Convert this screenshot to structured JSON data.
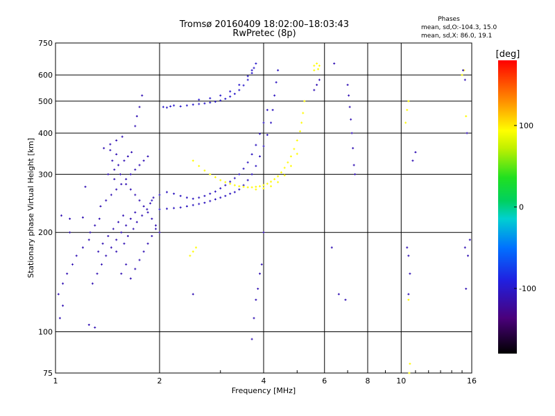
{
  "chart_data": {
    "type": "scatter",
    "title": "Tromsø 20160409 18:02:00–18:03:43",
    "subtitle": "RwPretec (8p)",
    "xlabel": "Frequency [MHz]",
    "ylabel": "Stationary phase Virtual Height [km]",
    "x_scale": "log",
    "y_scale": "log",
    "xlim": [
      1,
      16
    ],
    "ylim": [
      75,
      750
    ],
    "x_ticks": [
      1,
      2,
      4,
      6,
      8,
      10,
      16
    ],
    "y_ticks": [
      75,
      100,
      200,
      300,
      400,
      500,
      600,
      750
    ],
    "grid": true,
    "phase_box": {
      "title": "Phases",
      "line1": "mean, sd,O:-104.3, 15.0",
      "line2": "mean, sd,X:  86.0, 19.1"
    },
    "colorbar": {
      "label": "[deg]",
      "range": [
        -180,
        180
      ],
      "ticks": [
        -100,
        0,
        100
      ]
    },
    "series": [
      {
        "group": "scattered-low",
        "phase": -110,
        "points": [
          [
            1.02,
            130
          ],
          [
            1.05,
            140
          ],
          [
            1.08,
            150
          ],
          [
            1.12,
            160
          ],
          [
            1.15,
            170
          ],
          [
            1.2,
            180
          ],
          [
            1.25,
            190
          ],
          [
            1.1,
            200
          ],
          [
            1.04,
            225
          ],
          [
            1.1,
            220
          ],
          [
            1.2,
            222
          ],
          [
            1.05,
            120
          ],
          [
            1.03,
            110
          ],
          [
            1.25,
            105
          ],
          [
            1.28,
            140
          ],
          [
            1.32,
            150
          ],
          [
            1.36,
            160
          ],
          [
            1.4,
            170
          ],
          [
            1.45,
            180
          ],
          [
            1.5,
            190
          ],
          [
            1.55,
            200
          ],
          [
            1.6,
            210
          ],
          [
            1.65,
            220
          ],
          [
            1.7,
            230
          ],
          [
            1.35,
            240
          ],
          [
            1.4,
            250
          ],
          [
            1.45,
            260
          ],
          [
            1.5,
            270
          ],
          [
            1.55,
            280
          ],
          [
            1.6,
            290
          ],
          [
            1.42,
            300
          ],
          [
            1.48,
            310
          ],
          [
            1.52,
            320
          ],
          [
            1.58,
            330
          ],
          [
            1.62,
            340
          ],
          [
            1.66,
            350
          ],
          [
            1.38,
            360
          ],
          [
            1.44,
            370
          ],
          [
            1.5,
            380
          ],
          [
            1.56,
            390
          ],
          [
            1.65,
            145
          ],
          [
            1.7,
            155
          ],
          [
            1.75,
            165
          ],
          [
            1.8,
            175
          ],
          [
            1.85,
            185
          ],
          [
            1.9,
            195
          ],
          [
            1.95,
            205
          ],
          [
            1.55,
            150
          ],
          [
            1.6,
            160
          ],
          [
            1.5,
            175
          ],
          [
            1.58,
            185
          ],
          [
            1.62,
            195
          ],
          [
            1.68,
            205
          ],
          [
            1.72,
            215
          ],
          [
            1.78,
            225
          ],
          [
            1.84,
            235
          ],
          [
            1.88,
            245
          ],
          [
            1.92,
            255
          ],
          [
            1.65,
            300
          ],
          [
            1.7,
            310
          ],
          [
            1.75,
            320
          ],
          [
            1.8,
            330
          ],
          [
            1.85,
            340
          ],
          [
            1.7,
            420
          ],
          [
            1.72,
            450
          ],
          [
            1.75,
            480
          ],
          [
            1.78,
            520
          ],
          [
            1.6,
            280
          ],
          [
            1.65,
            270
          ],
          [
            1.7,
            260
          ],
          [
            1.75,
            250
          ],
          [
            1.8,
            240
          ],
          [
            1.85,
            230
          ],
          [
            1.9,
            220
          ],
          [
            1.95,
            210
          ],
          [
            2.0,
            200
          ],
          [
            1.33,
            175
          ],
          [
            1.37,
            185
          ],
          [
            1.42,
            195
          ],
          [
            1.47,
            205
          ],
          [
            1.52,
            215
          ],
          [
            1.57,
            225
          ],
          [
            1.48,
            290
          ],
          [
            1.54,
            300
          ],
          [
            1.46,
            330
          ],
          [
            1.5,
            345
          ],
          [
            1.44,
            355
          ],
          [
            1.26,
            200
          ],
          [
            1.3,
            210
          ],
          [
            1.34,
            220
          ],
          [
            1.22,
            275
          ]
        ]
      },
      {
        "group": "o-trace-lower",
        "phase": -105,
        "points": [
          [
            2.0,
            235
          ],
          [
            2.1,
            236
          ],
          [
            2.2,
            237
          ],
          [
            2.3,
            238
          ],
          [
            2.4,
            240
          ],
          [
            2.5,
            242
          ],
          [
            2.6,
            244
          ],
          [
            2.7,
            246
          ],
          [
            2.8,
            249
          ],
          [
            2.9,
            252
          ],
          [
            3.0,
            255
          ],
          [
            3.1,
            258
          ],
          [
            3.2,
            262
          ],
          [
            3.3,
            265
          ],
          [
            3.4,
            270
          ],
          [
            3.5,
            278
          ],
          [
            3.6,
            288
          ],
          [
            3.7,
            300
          ],
          [
            3.8,
            318
          ],
          [
            3.9,
            340
          ],
          [
            4.0,
            365
          ],
          [
            4.1,
            395
          ],
          [
            4.2,
            430
          ],
          [
            4.25,
            470
          ],
          [
            4.3,
            520
          ],
          [
            4.35,
            570
          ],
          [
            4.4,
            620
          ],
          [
            1.9,
            250
          ],
          [
            2.0,
            260
          ],
          [
            2.1,
            265
          ],
          [
            2.2,
            262
          ],
          [
            2.3,
            258
          ],
          [
            2.4,
            255
          ],
          [
            2.5,
            253
          ],
          [
            2.6,
            255
          ],
          [
            2.7,
            258
          ],
          [
            2.8,
            262
          ],
          [
            2.9,
            266
          ],
          [
            3.0,
            272
          ],
          [
            3.1,
            278
          ],
          [
            3.2,
            285
          ],
          [
            3.3,
            292
          ],
          [
            3.4,
            300
          ],
          [
            3.5,
            312
          ],
          [
            3.6,
            326
          ],
          [
            3.7,
            345
          ],
          [
            3.8,
            368
          ],
          [
            3.9,
            398
          ],
          [
            4.0,
            430
          ],
          [
            4.1,
            470
          ]
        ]
      },
      {
        "group": "o-trace-upper",
        "phase": -100,
        "points": [
          [
            2.05,
            480
          ],
          [
            2.1,
            478
          ],
          [
            2.15,
            482
          ],
          [
            2.2,
            485
          ],
          [
            2.3,
            482
          ],
          [
            2.4,
            485
          ],
          [
            2.5,
            488
          ],
          [
            2.6,
            490
          ],
          [
            2.7,
            492
          ],
          [
            2.8,
            495
          ],
          [
            2.9,
            498
          ],
          [
            3.0,
            502
          ],
          [
            3.1,
            508
          ],
          [
            3.2,
            516
          ],
          [
            3.3,
            526
          ],
          [
            3.4,
            540
          ],
          [
            3.5,
            558
          ],
          [
            3.6,
            580
          ],
          [
            3.7,
            608
          ],
          [
            3.75,
            630
          ],
          [
            3.8,
            650
          ],
          [
            2.6,
            505
          ],
          [
            2.8,
            510
          ],
          [
            3.0,
            520
          ],
          [
            3.2,
            535
          ],
          [
            3.4,
            560
          ],
          [
            3.6,
            595
          ],
          [
            3.7,
            620
          ]
        ]
      },
      {
        "group": "x-trace",
        "phase": 95,
        "points": [
          [
            2.5,
            330
          ],
          [
            2.6,
            318
          ],
          [
            2.7,
            308
          ],
          [
            2.8,
            300
          ],
          [
            2.9,
            294
          ],
          [
            3.0,
            288
          ],
          [
            3.1,
            284
          ],
          [
            3.2,
            281
          ],
          [
            3.3,
            278
          ],
          [
            3.4,
            276
          ],
          [
            3.5,
            275
          ],
          [
            3.6,
            274
          ],
          [
            3.7,
            274
          ],
          [
            3.8,
            275
          ],
          [
            3.9,
            276
          ],
          [
            4.0,
            278
          ],
          [
            4.1,
            281
          ],
          [
            4.2,
            285
          ],
          [
            4.3,
            290
          ],
          [
            4.4,
            296
          ],
          [
            4.5,
            304
          ],
          [
            4.6,
            314
          ],
          [
            4.7,
            326
          ],
          [
            4.8,
            340
          ],
          [
            4.9,
            358
          ],
          [
            5.0,
            380
          ],
          [
            5.1,
            405
          ],
          [
            5.15,
            430
          ],
          [
            5.2,
            460
          ],
          [
            5.25,
            500
          ],
          [
            3.8,
            270
          ],
          [
            4.0,
            272
          ],
          [
            4.2,
            276
          ],
          [
            4.4,
            284
          ],
          [
            4.6,
            298
          ],
          [
            4.8,
            318
          ],
          [
            5.0,
            346
          ],
          [
            2.45,
            170
          ],
          [
            2.5,
            175
          ],
          [
            2.55,
            180
          ],
          [
            5.6,
            640
          ],
          [
            5.7,
            650
          ],
          [
            5.8,
            640
          ],
          [
            5.6,
            620
          ],
          [
            5.75,
            625
          ],
          [
            10.3,
            430
          ],
          [
            10.4,
            470
          ],
          [
            10.5,
            500
          ],
          [
            15.0,
            600
          ],
          [
            15.2,
            620
          ],
          [
            15.4,
            450
          ],
          [
            10.6,
            80
          ],
          [
            10.55,
            75
          ],
          [
            10.5,
            125
          ]
        ]
      },
      {
        "group": "sparse-high-freq",
        "phase": -110,
        "points": [
          [
            5.6,
            540
          ],
          [
            5.7,
            560
          ],
          [
            5.8,
            580
          ],
          [
            7.0,
            560
          ],
          [
            7.05,
            520
          ],
          [
            7.1,
            480
          ],
          [
            7.15,
            440
          ],
          [
            7.2,
            400
          ],
          [
            7.25,
            360
          ],
          [
            7.3,
            320
          ],
          [
            7.35,
            300
          ],
          [
            6.4,
            650
          ],
          [
            6.3,
            180
          ],
          [
            6.6,
            130
          ],
          [
            6.9,
            125
          ],
          [
            10.4,
            180
          ],
          [
            10.5,
            170
          ],
          [
            10.6,
            150
          ],
          [
            10.8,
            330
          ],
          [
            11.0,
            350
          ],
          [
            15.1,
            620
          ],
          [
            15.3,
            580
          ],
          [
            15.5,
            400
          ],
          [
            15.3,
            180
          ],
          [
            15.6,
            170
          ],
          [
            15.8,
            190
          ],
          [
            15.4,
            135
          ],
          [
            3.7,
            95
          ],
          [
            3.75,
            110
          ],
          [
            3.8,
            125
          ],
          [
            3.85,
            135
          ],
          [
            3.9,
            150
          ],
          [
            3.95,
            160
          ],
          [
            4.0,
            200
          ],
          [
            1.3,
            103
          ],
          [
            2.5,
            130
          ],
          [
            10.5,
            130
          ]
        ]
      }
    ]
  }
}
